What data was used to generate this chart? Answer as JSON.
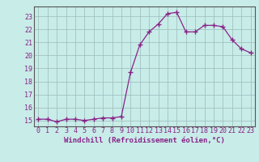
{
  "x": [
    0,
    1,
    2,
    3,
    4,
    5,
    6,
    7,
    8,
    9,
    10,
    11,
    12,
    13,
    14,
    15,
    16,
    17,
    18,
    19,
    20,
    21,
    22,
    23
  ],
  "y": [
    15.1,
    15.1,
    14.9,
    15.1,
    15.1,
    15.0,
    15.1,
    15.2,
    15.2,
    15.3,
    18.7,
    20.8,
    21.8,
    22.4,
    23.2,
    23.3,
    21.8,
    21.8,
    22.3,
    22.3,
    22.2,
    21.2,
    20.5,
    20.2
  ],
  "line_color": "#882288",
  "marker": "+",
  "marker_size": 4,
  "marker_lw": 1.0,
  "line_width": 0.9,
  "bg_color": "#c8ece8",
  "grid_color": "#99bbbb",
  "xlabel": "Windchill (Refroidissement éolien,°C)",
  "ylabel_ticks": [
    15,
    16,
    17,
    18,
    19,
    20,
    21,
    22,
    23
  ],
  "xlim": [
    -0.5,
    23.5
  ],
  "ylim": [
    14.55,
    23.75
  ],
  "xticks": [
    0,
    1,
    2,
    3,
    4,
    5,
    6,
    7,
    8,
    9,
    10,
    11,
    12,
    13,
    14,
    15,
    16,
    17,
    18,
    19,
    20,
    21,
    22,
    23
  ],
  "axis_fontsize": 6.5,
  "tick_fontsize": 6.0,
  "label_color": "#882288"
}
